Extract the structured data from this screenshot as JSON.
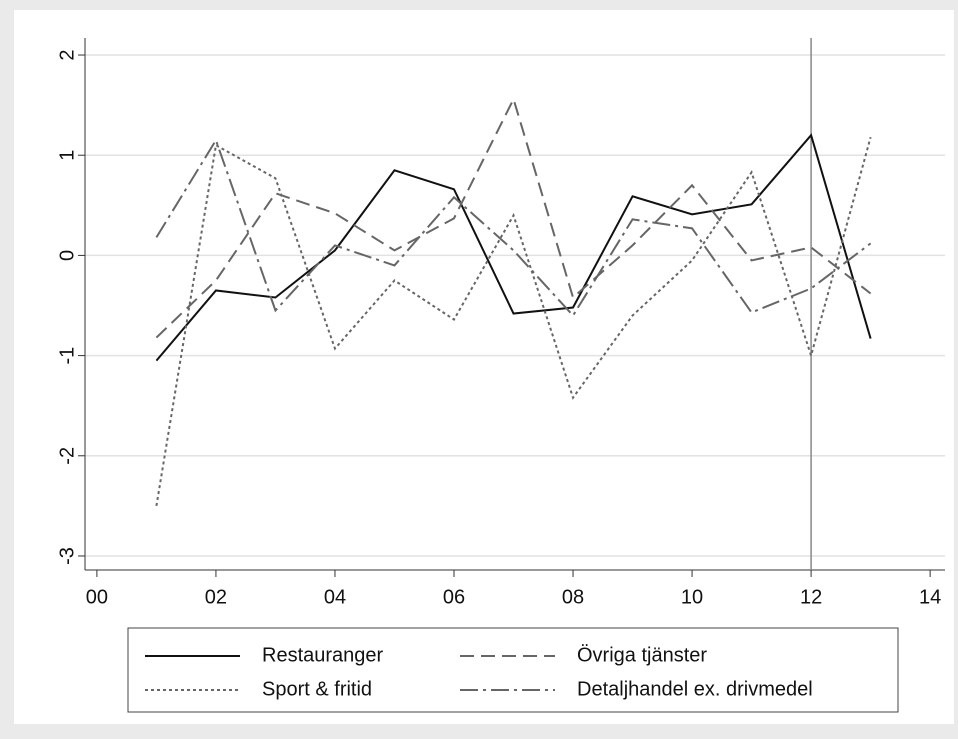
{
  "chart_data": {
    "type": "line",
    "x": [
      1,
      2,
      3,
      4,
      5,
      6,
      7,
      8,
      9,
      10,
      11,
      12,
      13
    ],
    "series": [
      {
        "name": "Restauranger",
        "color": "#111111",
        "dash": "none",
        "values": [
          -1.05,
          -0.35,
          -0.42,
          0.05,
          0.85,
          0.66,
          -0.58,
          -0.52,
          0.59,
          0.41,
          0.51,
          1.2,
          -0.83
        ]
      },
      {
        "name": "Övriga tjänster",
        "color": "#666666",
        "dash": "14 7",
        "values": [
          -0.82,
          -0.25,
          0.62,
          0.42,
          0.05,
          0.37,
          1.56,
          -0.42,
          0.1,
          0.7,
          -0.05,
          0.08,
          -0.38
        ]
      },
      {
        "name": "Sport & fritid",
        "color": "#666666",
        "dash": "3 3",
        "values": [
          -2.5,
          1.1,
          0.77,
          -0.93,
          -0.25,
          -0.64,
          0.4,
          -1.42,
          -0.6,
          -0.05,
          0.83,
          -1.0,
          1.18
        ]
      },
      {
        "name": "Detaljhandel ex. drivmedel",
        "color": "#666666",
        "dash": "18 5 3 5",
        "values": [
          0.18,
          1.15,
          -0.55,
          0.1,
          -0.1,
          0.58,
          0.05,
          -0.6,
          0.36,
          0.27,
          -0.57,
          -0.33,
          0.12
        ]
      }
    ],
    "xlim": [
      -0.2,
      14.25
    ],
    "ylim": [
      -3.14,
      2.17
    ],
    "xticks": [
      {
        "value": 0,
        "label": "00"
      },
      {
        "value": 2,
        "label": "02"
      },
      {
        "value": 4,
        "label": "04"
      },
      {
        "value": 6,
        "label": "06"
      },
      {
        "value": 8,
        "label": "08"
      },
      10,
      12,
      14
    ],
    "yticks": [
      -3,
      -2,
      -1,
      0,
      1,
      2
    ],
    "xline": 12,
    "grid": true,
    "legend": "bottom"
  }
}
